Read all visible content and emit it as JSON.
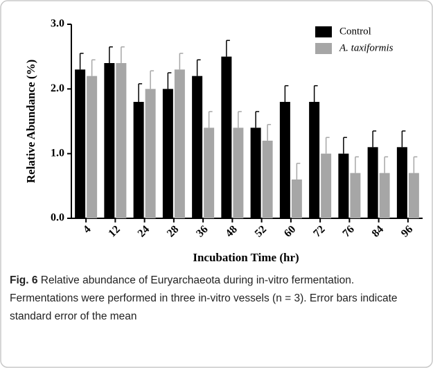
{
  "chart_data": {
    "type": "bar",
    "ylabel": "Relative Abundance (%)",
    "xlabel": "Incubation Time (hr)",
    "categories": [
      "4",
      "12",
      "24",
      "28",
      "36",
      "48",
      "52",
      "60",
      "72",
      "76",
      "84",
      "96"
    ],
    "series": [
      {
        "name": "Control",
        "color": "#000000",
        "values": [
          2.3,
          2.4,
          1.8,
          2.0,
          2.2,
          2.5,
          1.4,
          1.8,
          1.8,
          1.0,
          1.1,
          1.1
        ],
        "errors": [
          0.25,
          0.25,
          0.28,
          0.25,
          0.25,
          0.25,
          0.25,
          0.25,
          0.25,
          0.25,
          0.25,
          0.25
        ]
      },
      {
        "name": "A. taxiformis",
        "color": "#a6a6a6",
        "values": [
          2.2,
          2.4,
          2.0,
          2.3,
          1.4,
          1.4,
          1.2,
          0.6,
          1.0,
          0.7,
          0.7,
          0.7
        ],
        "errors": [
          0.25,
          0.25,
          0.28,
          0.25,
          0.25,
          0.25,
          0.25,
          0.25,
          0.25,
          0.25,
          0.25,
          0.25
        ]
      }
    ],
    "ylim": [
      0,
      3
    ],
    "yticks": [
      {
        "value": 0,
        "label": "0.0"
      },
      {
        "value": 1,
        "label": "1.0"
      },
      {
        "value": 2,
        "label": "2.0"
      },
      {
        "value": 3,
        "label": "3.0"
      }
    ],
    "legend": "upper right",
    "caption_label": "Fig. 6",
    "caption": "Relative abundance of Euryarchaeota during in-vitro fermentation. Fermentations were performed in three in-vitro vessels (n = 3). Error bars indicate standard error of the mean"
  }
}
